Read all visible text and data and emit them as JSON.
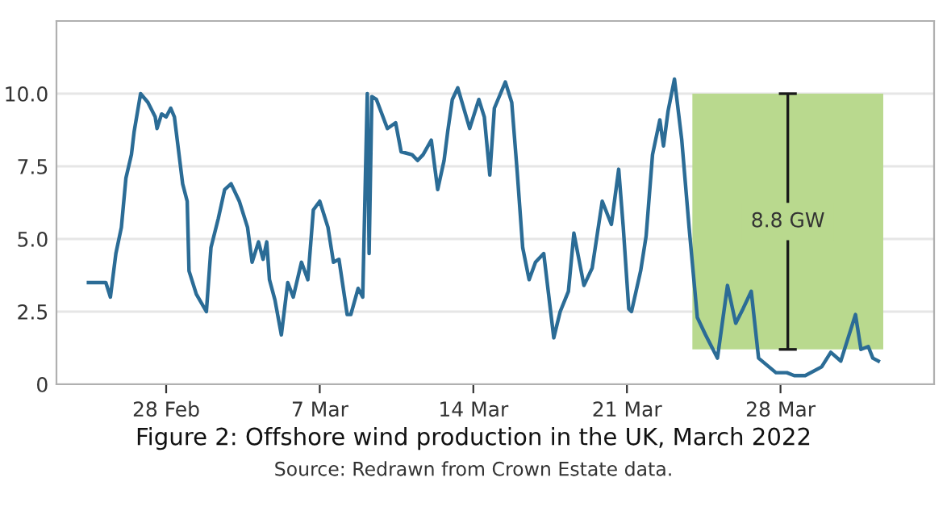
{
  "chart_data": {
    "type": "line",
    "title": "Figure 2: Offshore wind production in the UK, March 2022",
    "annotations": [
      "Source: Redrawn from Crown Estate data."
    ],
    "series": [
      {
        "color": "#2b6c96",
        "x": [
          "2022-02-24T11:00",
          "2022-02-25T06:00",
          "2022-02-25T11:00",
          "2022-02-25T17:00",
          "2022-02-25T23:00",
          "2022-02-26T04:00",
          "2022-02-26T10:00",
          "2022-02-26T13:00",
          "2022-02-26T20:00",
          "2022-02-27T04:00",
          "2022-02-27T12:00",
          "2022-02-27T14:00",
          "2022-02-27T19:00",
          "2022-02-28T00:00",
          "2022-02-28T05:00",
          "2022-02-28T09:00",
          "2022-02-28T18:00",
          "2022-02-28T23:00",
          "2022-03-01T01:00",
          "2022-03-01T09:00",
          "2022-03-01T20:00",
          "2022-03-02T01:00",
          "2022-03-02T09:00",
          "2022-03-02T16:00",
          "2022-03-02T23:00",
          "2022-03-03T08:00",
          "2022-03-03T17:00",
          "2022-03-03T22:00",
          "2022-03-04T05:00",
          "2022-03-04T10:00",
          "2022-03-04T14:00",
          "2022-03-04T17:00",
          "2022-03-04T23:00",
          "2022-03-05T06:00",
          "2022-03-05T13:00",
          "2022-03-05T19:00",
          "2022-03-06T04:00",
          "2022-03-06T11:00",
          "2022-03-06T17:00",
          "2022-03-07T00:00",
          "2022-03-07T09:00",
          "2022-03-07T15:00",
          "2022-03-07T21:00",
          "2022-03-08T06:00",
          "2022-03-08T10:00",
          "2022-03-08T18:00",
          "2022-03-08T23:00",
          "2022-03-09T04:00",
          "2022-03-09T06:00",
          "2022-03-09T09:00",
          "2022-03-09T14:00",
          "2022-03-10T02:00",
          "2022-03-10T11:00",
          "2022-03-10T17:00",
          "2022-03-11T05:00",
          "2022-03-11T11:00",
          "2022-03-11T17:00",
          "2022-03-12T02:00",
          "2022-03-12T09:00",
          "2022-03-12T16:00",
          "2022-03-12T20:00",
          "2022-03-13T01:00",
          "2022-03-13T07:00",
          "2022-03-13T20:00",
          "2022-03-14T06:00",
          "2022-03-14T12:00",
          "2022-03-14T18:00",
          "2022-03-14T23:00",
          "2022-03-15T11:00",
          "2022-03-15T18:00",
          "2022-03-16T00:00",
          "2022-03-16T06:00",
          "2022-03-16T13:00",
          "2022-03-16T20:00",
          "2022-03-17T05:00",
          "2022-03-17T16:00",
          "2022-03-17T23:00",
          "2022-03-18T08:00",
          "2022-03-18T14:00",
          "2022-03-19T01:00",
          "2022-03-19T10:00",
          "2022-03-19T21:00",
          "2022-03-20T07:00",
          "2022-03-20T15:00",
          "2022-03-20T20:00",
          "2022-03-21T02:00",
          "2022-03-21T05:00",
          "2022-03-21T15:00",
          "2022-03-21T21:00",
          "2022-03-22T04:00",
          "2022-03-22T12:00",
          "2022-03-22T16:00",
          "2022-03-22T21:00",
          "2022-03-23T04:00",
          "2022-03-23T12:00",
          "2022-03-23T20:00",
          "2022-03-24T05:00",
          "2022-03-24T14:00",
          "2022-03-25T03:00",
          "2022-03-25T14:00",
          "2022-03-25T23:00",
          "2022-03-26T07:00",
          "2022-03-26T16:00",
          "2022-03-27T00:00",
          "2022-03-27T19:00",
          "2022-03-28T07:00",
          "2022-03-28T15:00",
          "2022-03-29T03:00",
          "2022-03-29T21:00",
          "2022-03-30T07:00",
          "2022-03-30T18:00",
          "2022-03-31T05:00",
          "2022-03-31T10:00",
          "2022-03-31T16:00",
          "2022-04-01T00:00",
          "2022-04-01T05:00",
          "2022-04-01T11:00"
        ],
        "values": [
          3.5,
          3.5,
          3.0,
          4.5,
          5.4,
          7.1,
          7.9,
          8.7,
          10.0,
          9.7,
          9.2,
          8.8,
          9.3,
          9.2,
          9.5,
          9.2,
          6.9,
          6.3,
          3.9,
          3.1,
          2.5,
          4.7,
          5.7,
          6.7,
          6.9,
          6.3,
          5.4,
          4.2,
          4.9,
          4.3,
          4.9,
          3.6,
          2.9,
          1.7,
          3.5,
          3.0,
          4.2,
          3.6,
          6.0,
          6.3,
          5.4,
          4.2,
          4.3,
          2.4,
          2.4,
          3.3,
          3.0,
          10.0,
          4.5,
          9.9,
          9.8,
          8.8,
          9.0,
          8.0,
          7.9,
          7.7,
          7.9,
          8.4,
          6.7,
          7.7,
          8.7,
          9.8,
          10.2,
          8.8,
          9.8,
          9.2,
          7.2,
          9.5,
          10.4,
          9.7,
          7.3,
          4.7,
          3.6,
          4.2,
          4.5,
          1.6,
          2.5,
          3.2,
          5.2,
          3.4,
          4.0,
          6.3,
          5.5,
          7.4,
          5.4,
          2.6,
          2.5,
          3.9,
          5.1,
          7.9,
          9.1,
          8.2,
          9.4,
          10.5,
          8.4,
          5.4,
          2.3,
          1.7,
          0.9,
          3.4,
          2.1,
          2.6,
          3.2,
          0.9,
          0.4,
          0.4,
          0.3,
          0.3,
          0.6,
          1.1,
          0.8,
          1.9,
          2.4,
          1.2,
          1.3,
          0.9,
          0.8
        ]
      },
      {
        "type": "bar",
        "color": "#b9d98e",
        "x": [
          "2022-03-28T08:00"
        ],
        "base": [
          1.2
        ],
        "values": [
          8.8
        ],
        "errors": [
          [
            1.2,
            10.0
          ]
        ],
        "value_labels": [
          "8.8 GW"
        ]
      }
    ],
    "xlim": [
      "2022-02-23",
      "2022-04-04"
    ],
    "xticks": [
      {
        "value": "2022-02-28",
        "label": "28 Feb"
      },
      {
        "value": "2022-03-07",
        "label": "7 Mar"
      },
      {
        "value": "2022-03-14",
        "label": "14 Mar"
      },
      {
        "value": "2022-03-21",
        "label": "21 Mar"
      },
      {
        "value": "2022-03-28",
        "label": "28 Mar"
      }
    ],
    "ylim": [
      0,
      12.5
    ],
    "yticks": [
      0,
      {
        "value": 2.5,
        "label": "2.5"
      },
      {
        "value": 5,
        "label": "5.0"
      },
      {
        "value": 7.5,
        "label": "7.5"
      },
      {
        "value": 10,
        "label": "10.0"
      }
    ],
    "grid": "y",
    "legend": false
  }
}
